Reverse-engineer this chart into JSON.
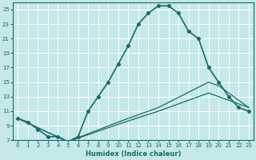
{
  "xlabel": "Humidex (Indice chaleur)",
  "background_color": "#c5e8e8",
  "grid_color": "#ffffff",
  "line_color": "#1a6b6b",
  "xlim": [
    -0.5,
    23.5
  ],
  "ylim": [
    7,
    26
  ],
  "yticks": [
    7,
    9,
    11,
    13,
    15,
    17,
    19,
    21,
    23,
    25
  ],
  "xticks": [
    0,
    1,
    2,
    3,
    4,
    5,
    6,
    7,
    8,
    9,
    10,
    11,
    12,
    13,
    14,
    15,
    16,
    17,
    18,
    19,
    20,
    21,
    22,
    23
  ],
  "main_x": [
    0,
    1,
    2,
    3,
    4,
    5,
    6,
    7,
    8,
    9,
    10,
    11,
    12,
    13,
    14,
    15,
    16,
    17,
    18,
    19,
    20,
    21,
    22,
    23
  ],
  "main_y": [
    10,
    9.5,
    8.5,
    7.5,
    7.5,
    6.8,
    7.5,
    11.0,
    13.0,
    15.0,
    17.5,
    20.0,
    23.0,
    24.5,
    25.5,
    25.5,
    24.5,
    22.0,
    21.0,
    17.0,
    15.0,
    13.0,
    11.5,
    11.0
  ],
  "line1_x": [
    0,
    5,
    10,
    14,
    19,
    20,
    21,
    22,
    23
  ],
  "line1_y": [
    10,
    6.8,
    9.5,
    11.5,
    15.0,
    14.5,
    13.5,
    12.5,
    11.5
  ],
  "line2_x": [
    0,
    5,
    10,
    14,
    19,
    20,
    21,
    22,
    23
  ],
  "line2_y": [
    10,
    6.8,
    9.2,
    11.0,
    13.5,
    13.0,
    12.5,
    12.0,
    11.5
  ]
}
